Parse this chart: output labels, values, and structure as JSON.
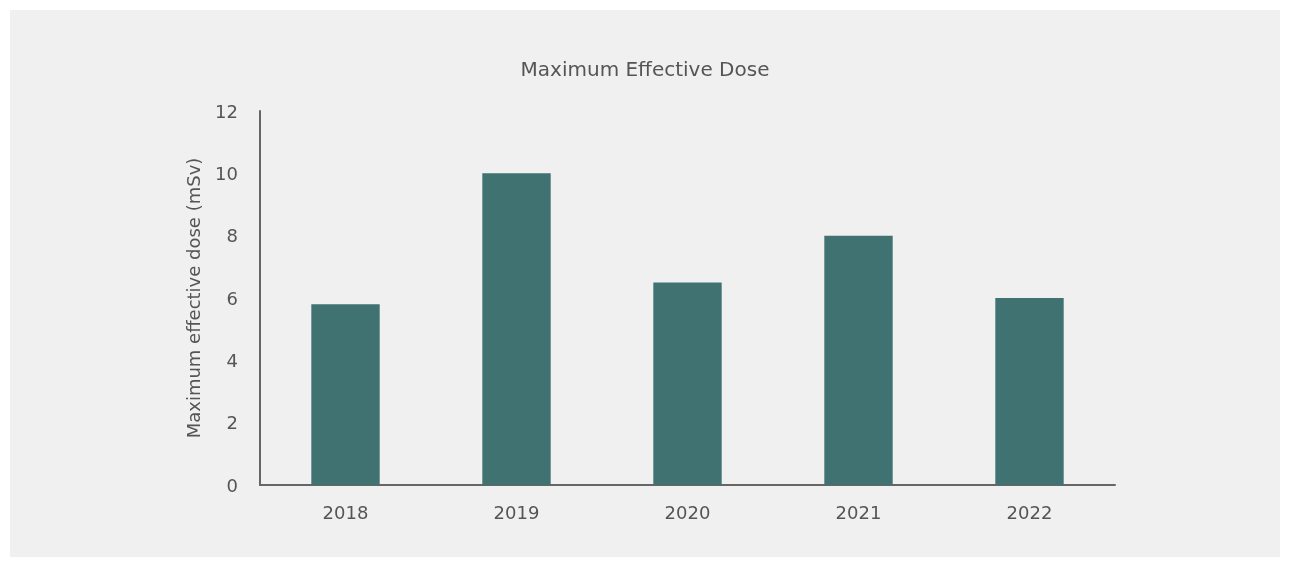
{
  "chart_data": {
    "type": "bar",
    "title": "Maximum Effective Dose",
    "ylabel": "Maximum effective dose (mSv)",
    "categories": [
      "2018",
      "2019",
      "2020",
      "2021",
      "2022"
    ],
    "values": [
      5.8,
      10.0,
      6.5,
      8.0,
      6.0
    ],
    "color": "#417272",
    "ylim": [
      0,
      12
    ],
    "yticks": [
      0,
      2,
      4,
      6,
      8,
      10,
      12
    ],
    "grid": false
  }
}
